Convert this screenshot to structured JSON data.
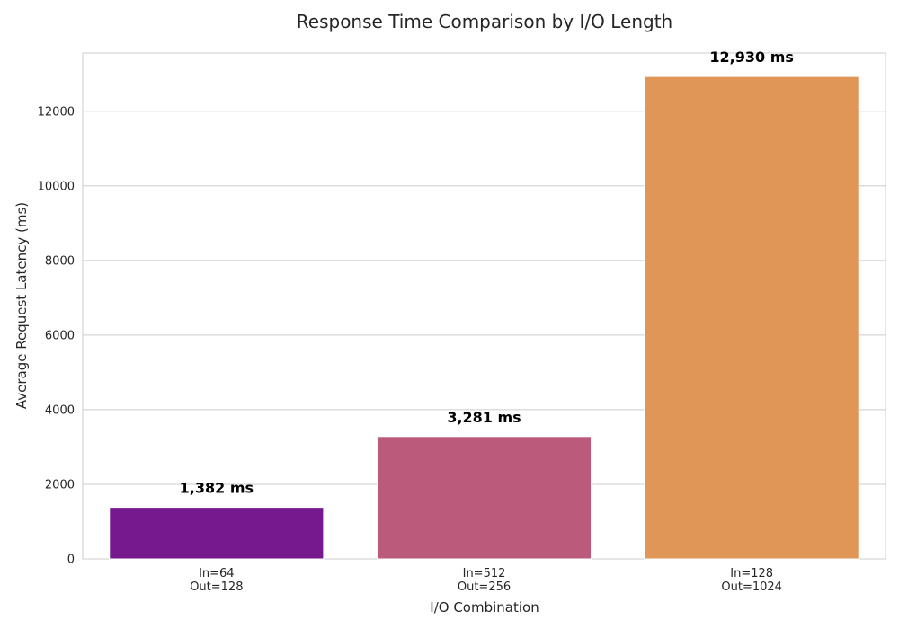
{
  "chart_data": {
    "type": "bar",
    "title": "Response Time Comparison by I/O Length",
    "xlabel": "I/O Combination",
    "ylabel": "Average Request Latency (ms)",
    "categories": [
      [
        "In=64",
        "Out=128"
      ],
      [
        "In=512",
        "Out=256"
      ],
      [
        "In=128",
        "Out=1024"
      ]
    ],
    "values": [
      1382,
      3281,
      12930
    ],
    "value_labels": [
      "1,382 ms",
      "3,281 ms",
      "12,930 ms"
    ],
    "colors": [
      "#76198f",
      "#bc5a7b",
      "#e09657"
    ],
    "ylim": [
      0,
      13560
    ],
    "yticks": [
      0,
      2000,
      4000,
      6000,
      8000,
      10000,
      12000
    ],
    "grid": "horizontal"
  }
}
